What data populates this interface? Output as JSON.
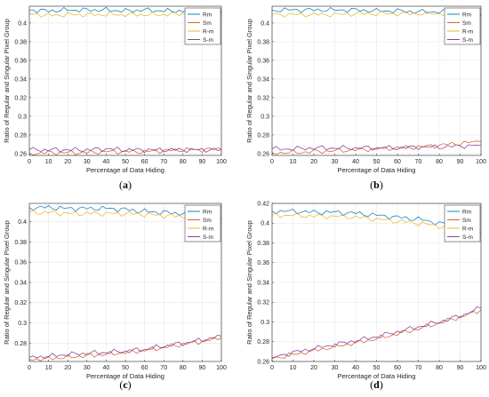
{
  "chart_data": [
    {
      "type": "line",
      "caption": "(a)",
      "xlabel": "Percentage of Data Hiding",
      "ylabel": "Ratio of Regular and Singular Pixel Group",
      "xlim": [
        0,
        100
      ],
      "ylim": [
        0.258,
        0.418
      ],
      "xticks": [
        0,
        10,
        20,
        30,
        40,
        50,
        60,
        70,
        80,
        90,
        100
      ],
      "yticks": [
        0.26,
        0.28,
        0.3,
        0.32,
        0.34,
        0.36,
        0.38,
        0.4
      ],
      "ytick_labels": [
        "0.26",
        "0.28",
        "0.3",
        "0.32",
        "0.34",
        "0.36",
        "0.38",
        "0.4"
      ],
      "grid": true,
      "legend_position": "top-right",
      "x": [
        0,
        10,
        20,
        30,
        40,
        50,
        60,
        70,
        80,
        90,
        100
      ],
      "series": [
        {
          "name": "Rm",
          "color": "#0072BD",
          "values": [
            0.414,
            0.413,
            0.414,
            0.414,
            0.414,
            0.413,
            0.414,
            0.413,
            0.413,
            0.413,
            0.412
          ]
        },
        {
          "name": "Sm",
          "color": "#D95319",
          "values": [
            0.26,
            0.261,
            0.261,
            0.261,
            0.262,
            0.262,
            0.262,
            0.263,
            0.264,
            0.264,
            0.265
          ]
        },
        {
          "name": "R-m",
          "color": "#EDB120",
          "values": [
            0.41,
            0.408,
            0.409,
            0.409,
            0.409,
            0.409,
            0.409,
            0.409,
            0.41,
            0.41,
            0.411
          ]
        },
        {
          "name": "S-m",
          "color": "#7E2F8E",
          "values": [
            0.264,
            0.264,
            0.264,
            0.264,
            0.265,
            0.264,
            0.264,
            0.264,
            0.264,
            0.264,
            0.264
          ]
        }
      ]
    },
    {
      "type": "line",
      "caption": "(b)",
      "xlabel": "Percentage of Data Hiding",
      "ylabel": "Ratio of Regular and Singular Pixel Group",
      "xlim": [
        0,
        100
      ],
      "ylim": [
        0.258,
        0.418
      ],
      "xticks": [
        0,
        10,
        20,
        30,
        40,
        50,
        60,
        70,
        80,
        90,
        100
      ],
      "yticks": [
        0.26,
        0.28,
        0.3,
        0.32,
        0.34,
        0.36,
        0.38,
        0.4
      ],
      "ytick_labels": [
        "0.26",
        "0.28",
        "0.3",
        "0.32",
        "0.34",
        "0.36",
        "0.38",
        "0.4"
      ],
      "grid": true,
      "legend_position": "top-right",
      "x": [
        0,
        10,
        20,
        30,
        40,
        50,
        60,
        70,
        80,
        90,
        100
      ],
      "series": [
        {
          "name": "Rm",
          "color": "#0072BD",
          "values": [
            0.414,
            0.414,
            0.414,
            0.414,
            0.414,
            0.413,
            0.413,
            0.412,
            0.412,
            0.411,
            0.408
          ]
        },
        {
          "name": "Sm",
          "color": "#D95319",
          "values": [
            0.261,
            0.261,
            0.262,
            0.263,
            0.264,
            0.265,
            0.266,
            0.267,
            0.269,
            0.271,
            0.273
          ]
        },
        {
          "name": "R-m",
          "color": "#EDB120",
          "values": [
            0.409,
            0.409,
            0.409,
            0.409,
            0.41,
            0.41,
            0.41,
            0.41,
            0.41,
            0.41,
            0.41
          ]
        },
        {
          "name": "S-m",
          "color": "#7E2F8E",
          "values": [
            0.265,
            0.265,
            0.266,
            0.266,
            0.266,
            0.266,
            0.266,
            0.267,
            0.267,
            0.268,
            0.269
          ]
        }
      ]
    },
    {
      "type": "line",
      "caption": "(c)",
      "xlabel": "Percentage of Data Hiding",
      "ylabel": "Ratio of Regular and Singular Pixel Group",
      "xlim": [
        0,
        100
      ],
      "ylim": [
        0.262,
        0.418
      ],
      "xticks": [
        0,
        10,
        20,
        30,
        40,
        50,
        60,
        70,
        80,
        90,
        100
      ],
      "yticks": [
        0.28,
        0.3,
        0.32,
        0.34,
        0.36,
        0.38,
        0.4
      ],
      "ytick_labels": [
        "0.28",
        "0.3",
        "0.32",
        "0.34",
        "0.36",
        "0.38",
        "0.4"
      ],
      "grid": true,
      "legend_position": "top-right",
      "x": [
        0,
        10,
        20,
        30,
        40,
        50,
        60,
        70,
        80,
        90,
        100
      ],
      "series": [
        {
          "name": "Rm",
          "color": "#0072BD",
          "values": [
            0.414,
            0.414,
            0.413,
            0.413,
            0.413,
            0.412,
            0.41,
            0.409,
            0.408,
            0.406,
            0.403
          ]
        },
        {
          "name": "Sm",
          "color": "#D95319",
          "values": [
            0.264,
            0.265,
            0.266,
            0.268,
            0.269,
            0.271,
            0.273,
            0.276,
            0.279,
            0.282,
            0.285
          ]
        },
        {
          "name": "R-m",
          "color": "#EDB120",
          "values": [
            0.409,
            0.409,
            0.408,
            0.408,
            0.408,
            0.408,
            0.407,
            0.406,
            0.405,
            0.404,
            0.402
          ]
        },
        {
          "name": "S-m",
          "color": "#7E2F8E",
          "values": [
            0.266,
            0.267,
            0.269,
            0.27,
            0.271,
            0.272,
            0.274,
            0.277,
            0.28,
            0.283,
            0.287
          ]
        }
      ]
    },
    {
      "type": "line",
      "caption": "(d)",
      "xlabel": "Percentage of Data Hiding",
      "ylabel": "Ratio of Regular and Singular Pixel Group",
      "xlim": [
        0,
        100
      ],
      "ylim": [
        0.26,
        0.42
      ],
      "xticks": [
        0,
        10,
        20,
        30,
        40,
        50,
        60,
        70,
        80,
        90,
        100
      ],
      "yticks": [
        0.26,
        0.28,
        0.3,
        0.32,
        0.34,
        0.36,
        0.38,
        0.4,
        0.42
      ],
      "ytick_labels": [
        "0.26",
        "0.28",
        "0.3",
        "0.32",
        "0.34",
        "0.36",
        "0.38",
        "0.4",
        "0.42"
      ],
      "grid": true,
      "legend_position": "top-right",
      "x": [
        0,
        10,
        20,
        30,
        40,
        50,
        60,
        70,
        80,
        90,
        100
      ],
      "series": [
        {
          "name": "Rm",
          "color": "#0072BD",
          "values": [
            0.412,
            0.412,
            0.411,
            0.411,
            0.41,
            0.408,
            0.406,
            0.404,
            0.4,
            0.396,
            0.39
          ]
        },
        {
          "name": "Sm",
          "color": "#D95319",
          "values": [
            0.263,
            0.267,
            0.271,
            0.275,
            0.279,
            0.283,
            0.288,
            0.293,
            0.299,
            0.305,
            0.312
          ]
        },
        {
          "name": "R-m",
          "color": "#EDB120",
          "values": [
            0.408,
            0.408,
            0.407,
            0.407,
            0.406,
            0.404,
            0.402,
            0.4,
            0.397,
            0.394,
            0.39
          ]
        },
        {
          "name": "S-m",
          "color": "#7E2F8E",
          "values": [
            0.264,
            0.269,
            0.273,
            0.277,
            0.281,
            0.285,
            0.29,
            0.295,
            0.3,
            0.306,
            0.314
          ]
        }
      ]
    }
  ]
}
